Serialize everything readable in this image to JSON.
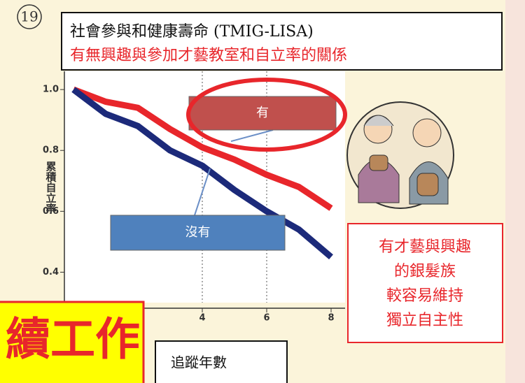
{
  "chart_data": {
    "type": "line",
    "badge": "19",
    "title": "社會參與和健康壽命 (TMIG-LISA)",
    "subtitle": "有無興趣與參加才藝教室和自立率的關係",
    "ylabel": "累積自立率",
    "xlabel": "追蹤年數",
    "x": [
      0,
      1,
      2,
      3,
      4,
      5,
      6,
      7,
      8
    ],
    "series": [
      {
        "name": "有",
        "color": "#e8262b",
        "values": [
          1.0,
          0.96,
          0.94,
          0.87,
          0.81,
          0.77,
          0.72,
          0.68,
          0.61
        ]
      },
      {
        "name": "沒有",
        "color": "#1c2a7a",
        "values": [
          1.0,
          0.92,
          0.88,
          0.8,
          0.75,
          0.67,
          0.6,
          0.54,
          0.45
        ]
      }
    ],
    "xlim": [
      0,
      8
    ],
    "ylim": [
      0.3,
      1.06
    ],
    "xticks": [
      4,
      6,
      8
    ],
    "yticks": [
      {
        "value": 1,
        "label": "1.0"
      },
      0.8,
      0.6,
      0.4
    ],
    "annotation_lines": [
      "有才藝與興趣",
      "的銀髮族",
      "較容易維持",
      "獨立自主性"
    ],
    "banner": "續工作"
  }
}
